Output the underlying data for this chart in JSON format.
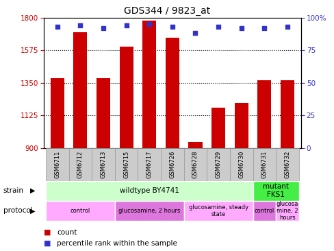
{
  "title": "GDS344 / 9823_at",
  "samples": [
    "GSM6711",
    "GSM6712",
    "GSM6713",
    "GSM6715",
    "GSM6717",
    "GSM6726",
    "GSM6728",
    "GSM6729",
    "GSM6730",
    "GSM6731",
    "GSM6732"
  ],
  "counts": [
    1380,
    1700,
    1380,
    1600,
    1780,
    1660,
    940,
    1180,
    1210,
    1370,
    1370
  ],
  "percentiles": [
    93,
    94,
    92,
    94,
    95,
    93,
    88,
    93,
    92,
    92,
    93
  ],
  "ylim_left": [
    900,
    1800
  ],
  "ylim_right": [
    0,
    100
  ],
  "yticks_left": [
    900,
    1125,
    1350,
    1575,
    1800
  ],
  "yticks_right": [
    0,
    25,
    50,
    75,
    100
  ],
  "bar_color": "#cc0000",
  "dot_color": "#3333cc",
  "strain_groups": [
    {
      "label": "wildtype BY4741",
      "samples": [
        0,
        9
      ],
      "color": "#ccffcc"
    },
    {
      "label": "mutant\nFKS1",
      "samples": [
        9,
        11
      ],
      "color": "#44ee44"
    }
  ],
  "protocol_groups": [
    {
      "label": "control",
      "samples": [
        0,
        3
      ],
      "color": "#ffaaff"
    },
    {
      "label": "glucosamine, 2 hours",
      "samples": [
        3,
        6
      ],
      "color": "#dd77dd"
    },
    {
      "label": "glucosamine, steady\nstate",
      "samples": [
        6,
        9
      ],
      "color": "#ffaaff"
    },
    {
      "label": "control",
      "samples": [
        9,
        10
      ],
      "color": "#dd77dd"
    },
    {
      "label": "glucosa\nmine, 2\nhours",
      "samples": [
        10,
        11
      ],
      "color": "#ffaaff"
    }
  ],
  "sample_box_color": "#cccccc",
  "sample_box_edge": "#999999"
}
